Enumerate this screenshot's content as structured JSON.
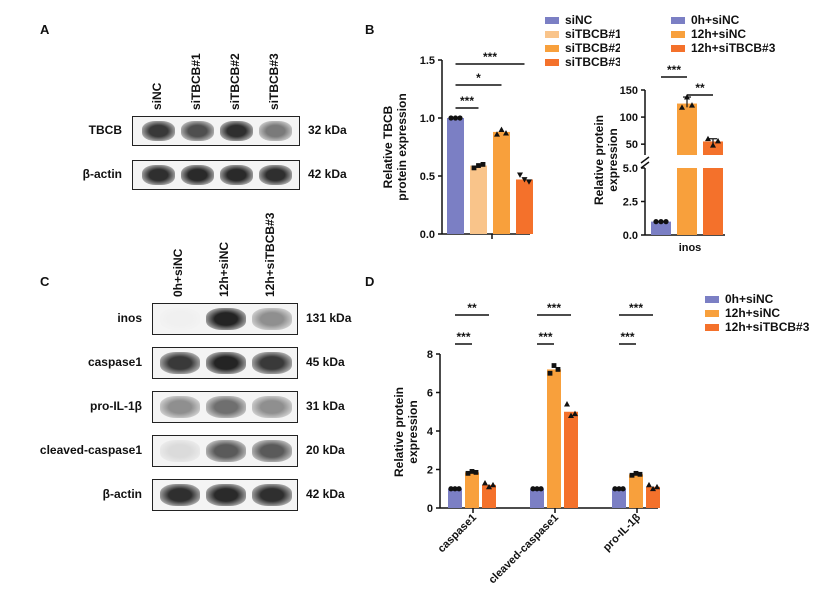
{
  "panel_letters": {
    "a": "A",
    "b": "B",
    "c": "C",
    "d": "D"
  },
  "blot_a": {
    "lanes": [
      "siNC",
      "siTBCB#1",
      "siTBCB#2",
      "siTBCB#3"
    ],
    "rows": [
      {
        "label": "TBCB",
        "kda": "32 kDa",
        "intensity": [
          0.85,
          0.75,
          0.9,
          0.55
        ]
      },
      {
        "label": "β-actin",
        "kda": "42 kDa",
        "intensity": [
          0.9,
          0.92,
          0.92,
          0.9
        ]
      }
    ]
  },
  "blot_c": {
    "lanes": [
      "0h+siNC",
      "12h+siNC",
      "12h+siTBCB#3"
    ],
    "rows": [
      {
        "label": "inos",
        "kda": "131 kDa",
        "intensity": [
          0.0,
          0.95,
          0.45
        ]
      },
      {
        "label": "caspase1",
        "kda": "45 kDa",
        "intensity": [
          0.85,
          0.95,
          0.85
        ]
      },
      {
        "label": "pro-IL-1β",
        "kda": "31 kDa",
        "intensity": [
          0.45,
          0.6,
          0.45
        ]
      },
      {
        "label": "cleaved-caspase1",
        "kda": "20 kDa",
        "intensity": [
          0.1,
          0.7,
          0.7
        ]
      },
      {
        "label": "β-actin",
        "kda": "42 kDa",
        "intensity": [
          0.9,
          0.92,
          0.9
        ]
      }
    ]
  },
  "chart_data": [
    {
      "type": "bar",
      "id": "B1",
      "ylabel": "Relative TBCB\nprotein expression",
      "ylim": [
        0,
        1.5
      ],
      "yticks": [
        "0.0",
        "0.5",
        "1.0",
        "1.5"
      ],
      "categories": [
        ""
      ],
      "series": [
        {
          "name": "siNC",
          "color": "#7b7fc4",
          "values": [
            1.0
          ],
          "points": [
            1.0,
            1.0,
            1.0
          ]
        },
        {
          "name": "siTBCB#1",
          "color": "#f9c48a",
          "values": [
            0.59
          ],
          "points": [
            0.57,
            0.59,
            0.6
          ]
        },
        {
          "name": "siTBCB#2",
          "color": "#f8a03c",
          "values": [
            0.88
          ],
          "points": [
            0.86,
            0.9,
            0.87
          ]
        },
        {
          "name": "siTBCB#3",
          "color": "#f4712b",
          "values": [
            0.47
          ],
          "points": [
            0.51,
            0.47,
            0.45
          ]
        }
      ],
      "significance": [
        "***",
        "*",
        "***"
      ],
      "legend": "top-right"
    },
    {
      "type": "bar",
      "id": "B2",
      "ylabel": "Relative protein\nexpression",
      "yticks_lower": [
        "0.0",
        "2.5",
        "5.0"
      ],
      "yticks_upper": [
        "50",
        "100",
        "150"
      ],
      "axis_break": [
        5,
        30
      ],
      "categories": [
        "inos"
      ],
      "series": [
        {
          "name": "0h+siNC",
          "color": "#7b7fc4",
          "values": [
            1.0
          ],
          "points": [
            1.0,
            1.0,
            1.0
          ]
        },
        {
          "name": "12h+siNC",
          "color": "#f8a03c",
          "values": [
            125
          ],
          "points": [
            118,
            137,
            122
          ]
        },
        {
          "name": "12h+siTBCB#3",
          "color": "#f4712b",
          "values": [
            55
          ],
          "points": [
            60,
            48,
            56
          ]
        }
      ],
      "significance": [
        "***",
        "**"
      ],
      "legend": "top-right"
    },
    {
      "type": "bar",
      "id": "D",
      "ylabel": "Relative protein\nexpression",
      "ylim": [
        0,
        8
      ],
      "yticks": [
        "0",
        "2",
        "4",
        "6",
        "8"
      ],
      "categories": [
        "caspase1",
        "cleaved-caspase1",
        "pro-IL-1β"
      ],
      "series": [
        {
          "name": "0h+siNC",
          "color": "#7b7fc4",
          "values": [
            1.0,
            1.0,
            1.0
          ],
          "points": [
            [
              1,
              1,
              1
            ],
            [
              1,
              1,
              1
            ],
            [
              1,
              1,
              1
            ]
          ]
        },
        {
          "name": "12h+siNC",
          "color": "#f8a03c",
          "values": [
            1.85,
            7.2,
            1.75
          ],
          "points": [
            [
              1.8,
              1.9,
              1.85
            ],
            [
              7.0,
              7.4,
              7.2
            ],
            [
              1.7,
              1.8,
              1.75
            ]
          ]
        },
        {
          "name": "12h+siTBCB#3",
          "color": "#f4712b",
          "values": [
            1.2,
            5.0,
            1.1
          ],
          "points": [
            [
              1.3,
              1.1,
              1.2
            ],
            [
              5.4,
              4.8,
              4.9
            ],
            [
              1.2,
              1.0,
              1.1
            ]
          ]
        }
      ],
      "significance": [
        [
          "***",
          "**"
        ],
        [
          "***",
          "***"
        ],
        [
          "***",
          "***"
        ]
      ],
      "legend": "top-right"
    }
  ]
}
